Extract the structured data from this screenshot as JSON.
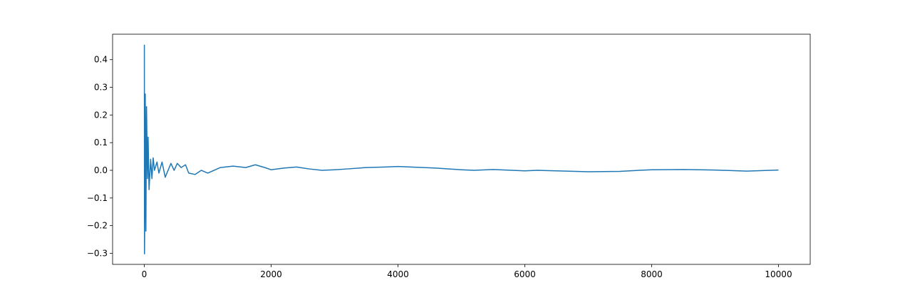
{
  "chart_data": {
    "type": "line",
    "x": [
      1,
      3,
      8,
      15,
      25,
      35,
      50,
      60,
      75,
      100,
      120,
      140,
      160,
      200,
      230,
      280,
      330,
      420,
      470,
      520,
      580,
      650,
      700,
      800,
      900,
      1000,
      1200,
      1400,
      1600,
      1750,
      1900,
      2000,
      2200,
      2400,
      2600,
      2800,
      3000,
      3200,
      3500,
      3800,
      4000,
      4400,
      4600,
      5000,
      5200,
      5500,
      6000,
      6200,
      6500,
      7000,
      7500,
      7800,
      8000,
      8500,
      9000,
      9500,
      10000
    ],
    "series": [
      {
        "color": "#1f77b4",
        "values": [
          0.454,
          -0.302,
          -0.14,
          0.276,
          -0.22,
          0.23,
          -0.03,
          0.12,
          -0.07,
          0.04,
          -0.03,
          0.045,
          0.0,
          0.03,
          -0.01,
          0.03,
          -0.025,
          0.025,
          0.0,
          0.025,
          0.01,
          0.02,
          -0.01,
          -0.015,
          0.0,
          -0.01,
          0.01,
          0.015,
          0.01,
          0.02,
          0.01,
          0.002,
          0.008,
          0.012,
          0.005,
          0.0,
          0.002,
          0.005,
          0.01,
          0.012,
          0.014,
          0.01,
          0.008,
          0.002,
          0.0,
          0.003,
          -0.002,
          0.0,
          -0.002,
          -0.005,
          -0.004,
          0.0,
          0.002,
          0.003,
          0.001,
          -0.003,
          0.001
        ]
      }
    ],
    "xlim": [
      -500,
      10500
    ],
    "ylim": [
      -0.34,
      0.492
    ],
    "xticks": [
      0,
      2000,
      4000,
      6000,
      8000,
      10000
    ],
    "yticks": [
      {
        "value": -0.3,
        "label": "−0.3"
      },
      {
        "value": -0.2,
        "label": "−0.2"
      },
      {
        "value": -0.1,
        "label": "−0.1"
      },
      {
        "value": 0,
        "label": "0.0"
      },
      0.1,
      0.2,
      0.3,
      0.4
    ]
  }
}
